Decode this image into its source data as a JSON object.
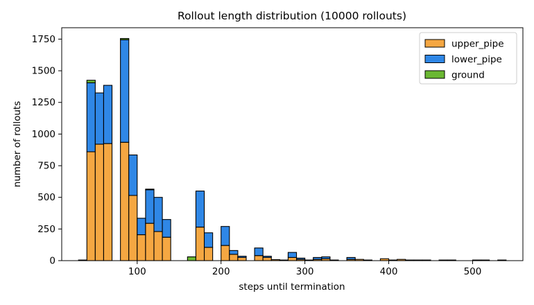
{
  "chart_data": {
    "type": "bar",
    "stacked": true,
    "title": "Rollout length distribution (10000 rollouts)",
    "xlabel": "steps until termination",
    "ylabel": "number of rollouts",
    "xlim": [
      10,
      560
    ],
    "ylim": [
      0,
      1840
    ],
    "xticks": [
      100,
      200,
      300,
      400,
      500
    ],
    "yticks": [
      0,
      250,
      500,
      750,
      1000,
      1250,
      1500,
      1750
    ],
    "bin_width": 10,
    "grid": false,
    "legend_position": "top-right",
    "bins": [
      {
        "x0": 30,
        "upper_pipe": 5,
        "lower_pipe": 0,
        "ground": 0
      },
      {
        "x0": 40,
        "upper_pipe": 860,
        "lower_pipe": 545,
        "ground": 20
      },
      {
        "x0": 50,
        "upper_pipe": 920,
        "lower_pipe": 405,
        "ground": 0
      },
      {
        "x0": 60,
        "upper_pipe": 925,
        "lower_pipe": 460,
        "ground": 0
      },
      {
        "x0": 80,
        "upper_pipe": 935,
        "lower_pipe": 810,
        "ground": 10
      },
      {
        "x0": 90,
        "upper_pipe": 515,
        "lower_pipe": 320,
        "ground": 0
      },
      {
        "x0": 100,
        "upper_pipe": 205,
        "lower_pipe": 130,
        "ground": 0
      },
      {
        "x0": 110,
        "upper_pipe": 295,
        "lower_pipe": 265,
        "ground": 5
      },
      {
        "x0": 120,
        "upper_pipe": 230,
        "lower_pipe": 270,
        "ground": 0
      },
      {
        "x0": 130,
        "upper_pipe": 185,
        "lower_pipe": 140,
        "ground": 0
      },
      {
        "x0": 160,
        "upper_pipe": 0,
        "lower_pipe": 0,
        "ground": 30
      },
      {
        "x0": 170,
        "upper_pipe": 265,
        "lower_pipe": 285,
        "ground": 0
      },
      {
        "x0": 180,
        "upper_pipe": 105,
        "lower_pipe": 115,
        "ground": 0
      },
      {
        "x0": 200,
        "upper_pipe": 120,
        "lower_pipe": 150,
        "ground": 0
      },
      {
        "x0": 210,
        "upper_pipe": 50,
        "lower_pipe": 30,
        "ground": 0
      },
      {
        "x0": 220,
        "upper_pipe": 25,
        "lower_pipe": 10,
        "ground": 0
      },
      {
        "x0": 240,
        "upper_pipe": 40,
        "lower_pipe": 60,
        "ground": 0
      },
      {
        "x0": 250,
        "upper_pipe": 25,
        "lower_pipe": 10,
        "ground": 0
      },
      {
        "x0": 260,
        "upper_pipe": 8,
        "lower_pipe": 0,
        "ground": 0
      },
      {
        "x0": 270,
        "upper_pipe": 5,
        "lower_pipe": 0,
        "ground": 0
      },
      {
        "x0": 280,
        "upper_pipe": 25,
        "lower_pipe": 40,
        "ground": 0
      },
      {
        "x0": 290,
        "upper_pipe": 10,
        "lower_pipe": 10,
        "ground": 0
      },
      {
        "x0": 300,
        "upper_pipe": 5,
        "lower_pipe": 0,
        "ground": 0
      },
      {
        "x0": 310,
        "upper_pipe": 10,
        "lower_pipe": 15,
        "ground": 0
      },
      {
        "x0": 320,
        "upper_pipe": 15,
        "lower_pipe": 15,
        "ground": 0
      },
      {
        "x0": 330,
        "upper_pipe": 5,
        "lower_pipe": 0,
        "ground": 0
      },
      {
        "x0": 350,
        "upper_pipe": 10,
        "lower_pipe": 15,
        "ground": 0
      },
      {
        "x0": 360,
        "upper_pipe": 10,
        "lower_pipe": 0,
        "ground": 0
      },
      {
        "x0": 370,
        "upper_pipe": 5,
        "lower_pipe": 0,
        "ground": 0
      },
      {
        "x0": 390,
        "upper_pipe": 15,
        "lower_pipe": 0,
        "ground": 0
      },
      {
        "x0": 400,
        "upper_pipe": 5,
        "lower_pipe": 0,
        "ground": 0
      },
      {
        "x0": 410,
        "upper_pipe": 10,
        "lower_pipe": 0,
        "ground": 0
      },
      {
        "x0": 420,
        "upper_pipe": 5,
        "lower_pipe": 0,
        "ground": 0
      },
      {
        "x0": 430,
        "upper_pipe": 5,
        "lower_pipe": 0,
        "ground": 0
      },
      {
        "x0": 440,
        "upper_pipe": 5,
        "lower_pipe": 0,
        "ground": 0
      },
      {
        "x0": 460,
        "upper_pipe": 5,
        "lower_pipe": 0,
        "ground": 0
      },
      {
        "x0": 470,
        "upper_pipe": 5,
        "lower_pipe": 0,
        "ground": 0
      },
      {
        "x0": 500,
        "upper_pipe": 5,
        "lower_pipe": 0,
        "ground": 0
      },
      {
        "x0": 510,
        "upper_pipe": 5,
        "lower_pipe": 0,
        "ground": 0
      },
      {
        "x0": 530,
        "upper_pipe": 5,
        "lower_pipe": 0,
        "ground": 0
      }
    ],
    "series": [
      {
        "name": "upper_pipe",
        "key": "upper_pipe",
        "color": "#f5a742"
      },
      {
        "name": "lower_pipe",
        "key": "lower_pipe",
        "color": "#2f87e6"
      },
      {
        "name": "ground",
        "key": "ground",
        "color": "#6ab832"
      }
    ]
  }
}
